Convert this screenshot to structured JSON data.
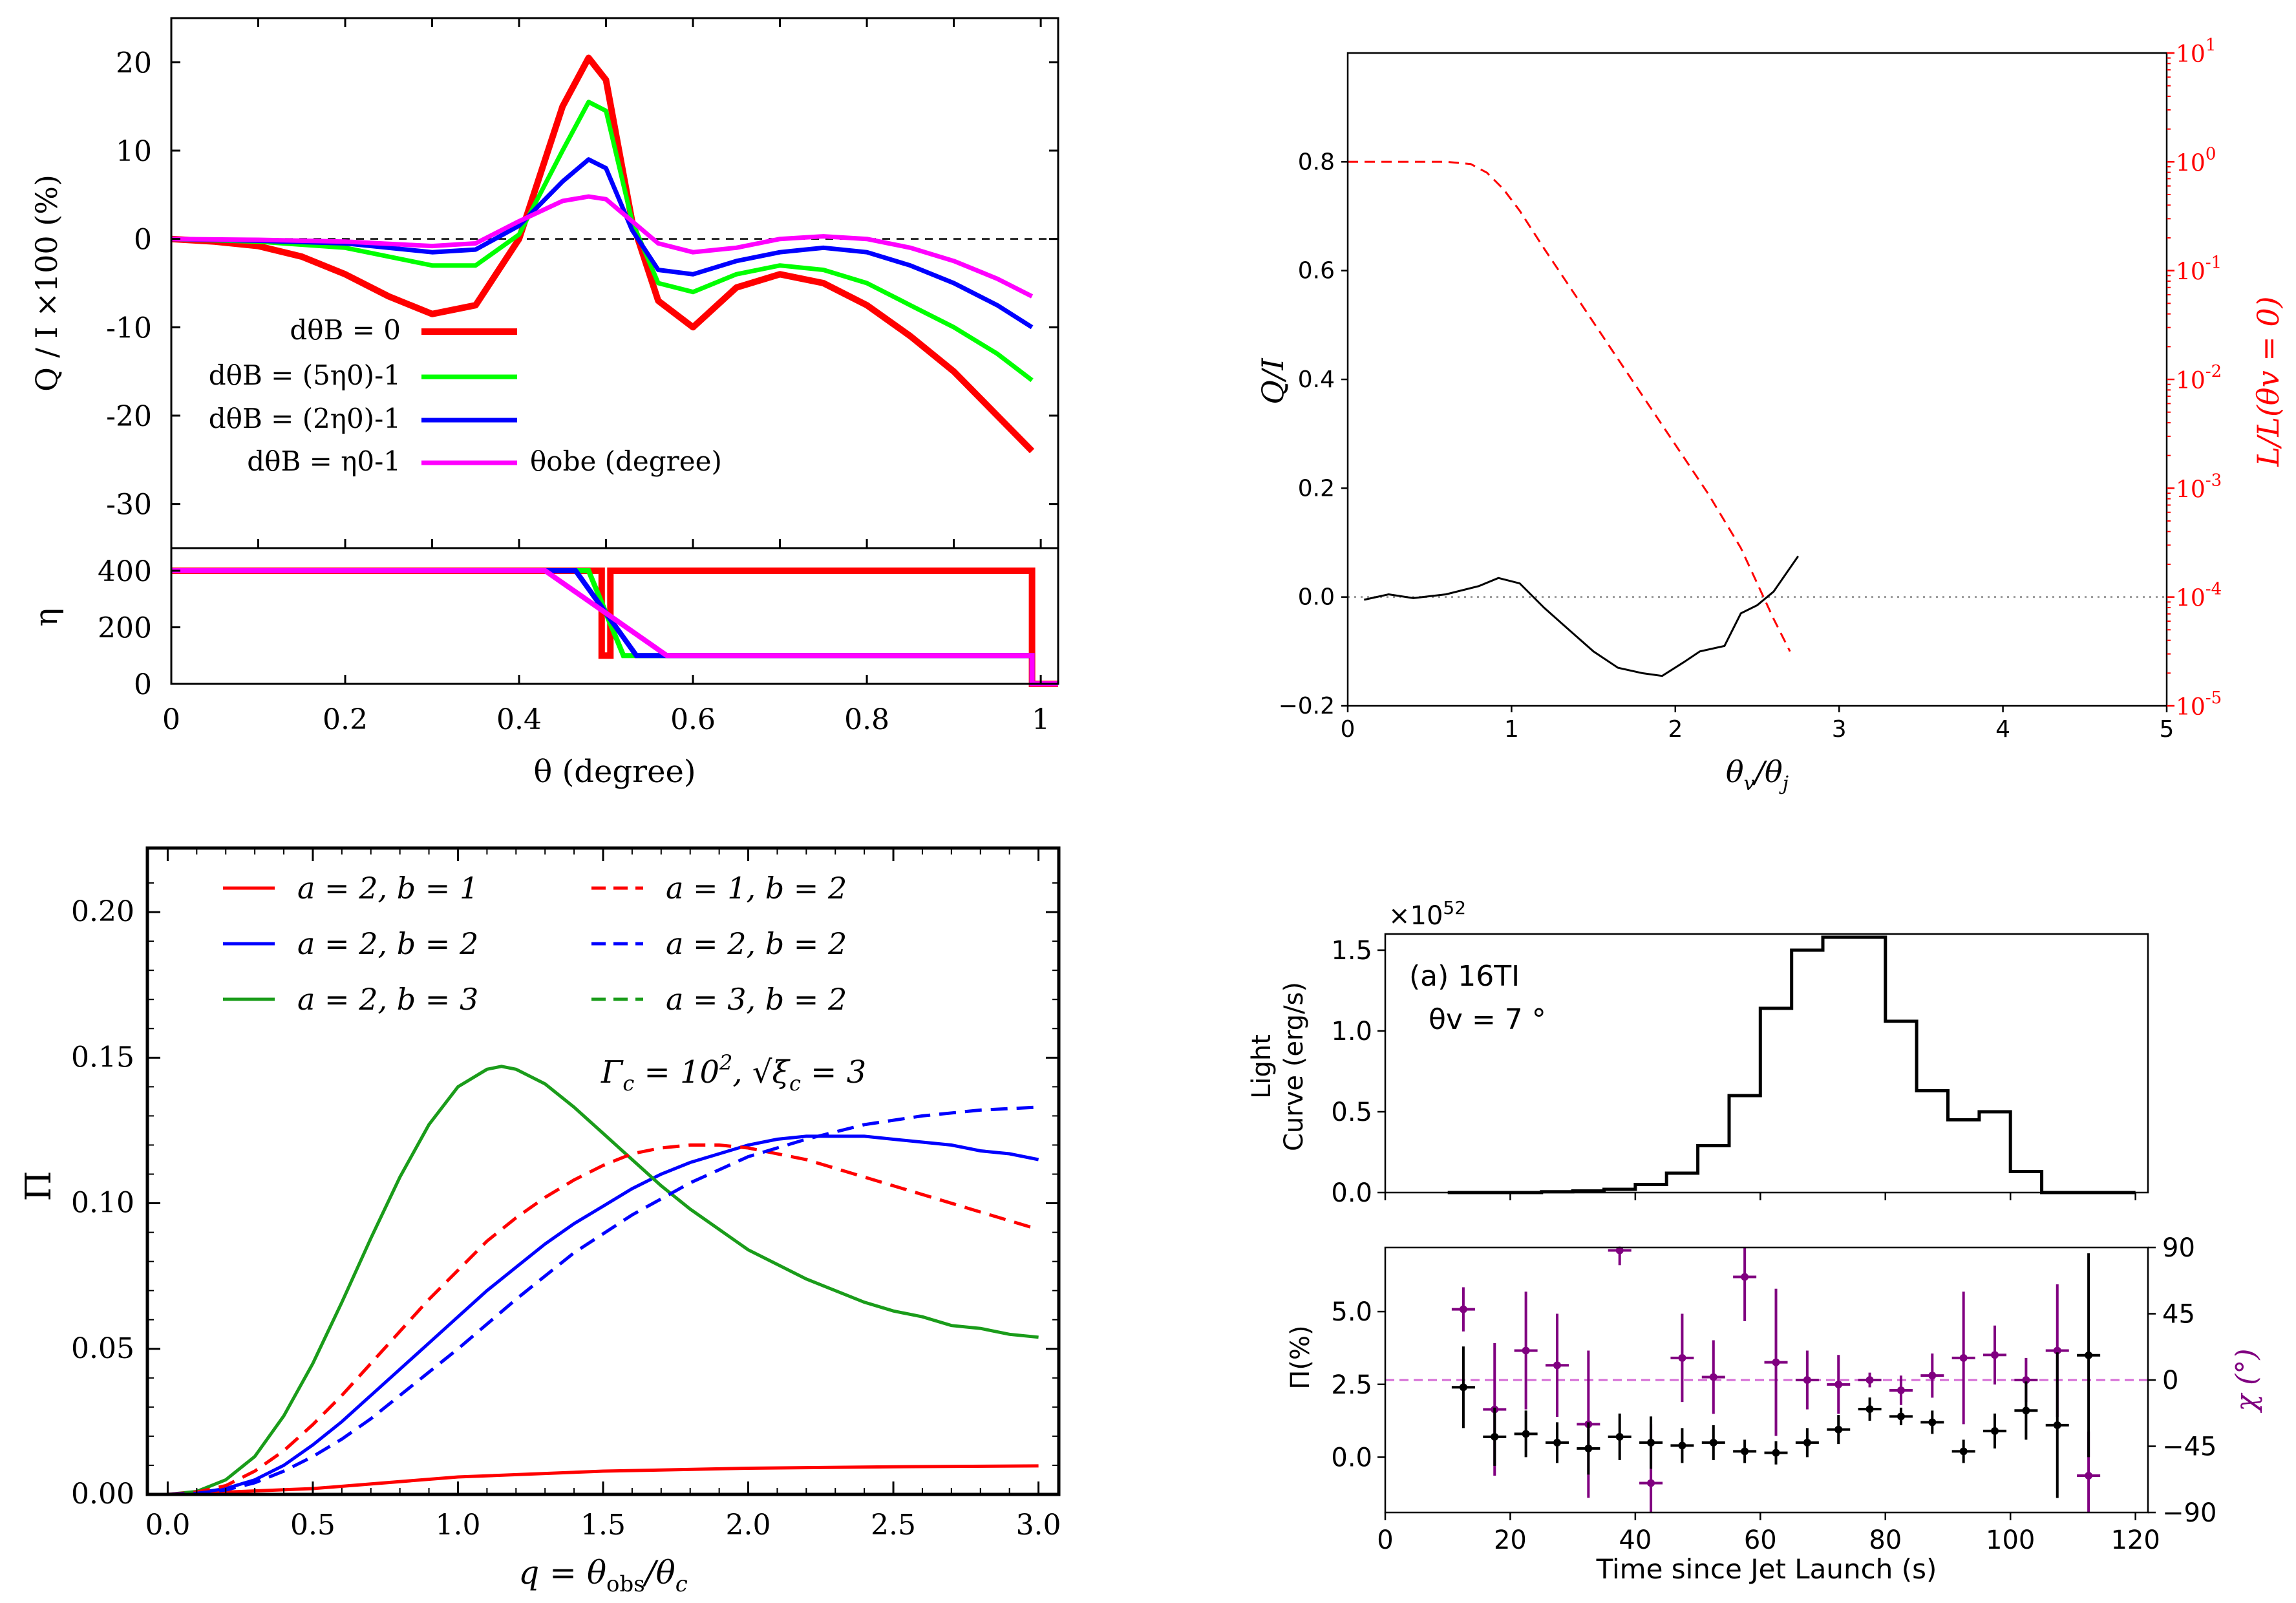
{
  "colors": {
    "red": "#ff0000",
    "green": "#00cc00",
    "green2": "#00ff00",
    "blue": "#0000ff",
    "magenta": "#ff00ff",
    "black": "#000000",
    "purple": "#800080",
    "pink": "#d56bd5",
    "dkgreen": "#1a9c1a"
  },
  "chart_data": [
    {
      "id": "tl_top",
      "type": "line",
      "ylabel": "Q / I  ×100 (%)",
      "xlim": [
        0,
        1.02
      ],
      "ylim": [
        -35,
        25
      ],
      "yticks": [
        "20",
        "10",
        "0",
        "-10",
        "-20",
        "-30"
      ],
      "ytick_values": [
        20,
        10,
        0,
        -10,
        -20,
        -30
      ],
      "annotation": "θobe (degree)",
      "series": [
        {
          "name": "dθB = 0",
          "color": "red",
          "x": [
            0,
            0.05,
            0.1,
            0.15,
            0.2,
            0.25,
            0.3,
            0.35,
            0.4,
            0.45,
            0.48,
            0.5,
            0.53,
            0.56,
            0.6,
            0.65,
            0.7,
            0.75,
            0.8,
            0.85,
            0.9,
            0.95,
            0.99
          ],
          "y": [
            0,
            -0.3,
            -0.8,
            -2,
            -4,
            -6.5,
            -8.5,
            -7.5,
            0,
            15,
            20.5,
            18,
            2,
            -7,
            -10,
            -5.5,
            -4,
            -5,
            -7.5,
            -11,
            -15,
            -20,
            -24
          ]
        },
        {
          "name": "dθB = (5η0)-1",
          "color": "green2",
          "x": [
            0,
            0.1,
            0.2,
            0.3,
            0.35,
            0.4,
            0.45,
            0.48,
            0.5,
            0.53,
            0.56,
            0.6,
            0.65,
            0.7,
            0.75,
            0.8,
            0.85,
            0.9,
            0.95,
            0.99
          ],
          "y": [
            0,
            -0.3,
            -1,
            -3,
            -3,
            0.5,
            10,
            15.5,
            14.5,
            2,
            -5,
            -6,
            -4,
            -3,
            -3.5,
            -5,
            -7.5,
            -10,
            -13,
            -16
          ]
        },
        {
          "name": "dθB = (2η0)-1",
          "color": "blue",
          "x": [
            0,
            0.1,
            0.2,
            0.3,
            0.35,
            0.4,
            0.45,
            0.48,
            0.5,
            0.53,
            0.56,
            0.6,
            0.65,
            0.7,
            0.75,
            0.8,
            0.85,
            0.9,
            0.95,
            0.99
          ],
          "y": [
            0,
            -0.2,
            -0.5,
            -1.5,
            -1.2,
            1.5,
            6.5,
            9,
            8,
            1,
            -3.5,
            -4,
            -2.5,
            -1.5,
            -1,
            -1.5,
            -3,
            -5,
            -7.5,
            -10
          ]
        },
        {
          "name": "dθB = η0-1",
          "color": "magenta",
          "x": [
            0,
            0.1,
            0.2,
            0.3,
            0.35,
            0.4,
            0.45,
            0.48,
            0.5,
            0.53,
            0.56,
            0.6,
            0.65,
            0.7,
            0.75,
            0.8,
            0.85,
            0.9,
            0.95,
            0.99
          ],
          "y": [
            0,
            -0.1,
            -0.3,
            -0.8,
            -0.5,
            2,
            4.3,
            4.8,
            4.5,
            2,
            -0.5,
            -1.5,
            -1,
            0,
            0.3,
            0,
            -1,
            -2.5,
            -4.5,
            -6.5
          ]
        }
      ]
    },
    {
      "id": "tl_bot",
      "type": "line",
      "ylabel": "η",
      "xlabel": "θ (degree)",
      "xlim": [
        0,
        1.02
      ],
      "ylim": [
        0,
        480
      ],
      "xticks": [
        "0",
        "0.2",
        "0.4",
        "0.6",
        "0.8",
        "1"
      ],
      "xtick_values": [
        0,
        0.2,
        0.4,
        0.6,
        0.8,
        1
      ],
      "yticks": [
        "400",
        "200",
        "0"
      ],
      "ytick_values": [
        400,
        200,
        0
      ],
      "series": [
        {
          "color": "red",
          "x": [
            0,
            0.495,
            0.495,
            0.505,
            0.505,
            0.99,
            0.99,
            1.02
          ],
          "y": [
            400,
            400,
            100,
            100,
            400,
            400,
            0,
            0
          ]
        },
        {
          "color": "green2",
          "x": [
            0,
            0.48,
            0.52,
            0.99,
            0.99,
            1.02
          ],
          "y": [
            400,
            400,
            100,
            100,
            0,
            0
          ]
        },
        {
          "color": "blue",
          "x": [
            0,
            0.465,
            0.535,
            0.99,
            0.99,
            1.02
          ],
          "y": [
            400,
            400,
            100,
            100,
            0,
            0
          ]
        },
        {
          "color": "magenta",
          "x": [
            0,
            0.43,
            0.57,
            0.99,
            0.99,
            1.02
          ],
          "y": [
            400,
            400,
            100,
            100,
            0,
            0
          ]
        }
      ]
    },
    {
      "id": "tr",
      "type": "line",
      "ylabel": "Q/I",
      "ylabel_right": "L/L(θv = 0)",
      "xlabel": "θv/θj",
      "xlim": [
        0,
        5
      ],
      "ylim": [
        -0.2,
        1.0
      ],
      "xticks": [
        "0",
        "1",
        "2",
        "3",
        "4",
        "5"
      ],
      "xtick_values": [
        0,
        1,
        2,
        3,
        4,
        5
      ],
      "yticks": [
        "0.8",
        "0.6",
        "0.4",
        "0.2",
        "0.0",
        "−0.2"
      ],
      "ytick_values": [
        0.8,
        0.6,
        0.4,
        0.2,
        0.0,
        -0.2
      ],
      "yticks_right_exponents": [
        "1",
        "0",
        "-1",
        "-2",
        "-3",
        "-4",
        "-5"
      ],
      "series": [
        {
          "color": "black",
          "x": [
            0.1,
            0.25,
            0.4,
            0.6,
            0.8,
            0.92,
            1.05,
            1.2,
            1.35,
            1.5,
            1.65,
            1.8,
            1.92,
            2.05,
            2.15,
            2.3,
            2.4,
            2.5,
            2.6,
            2.75
          ],
          "y": [
            -0.005,
            0.005,
            -0.002,
            0.005,
            0.02,
            0.035,
            0.025,
            -0.02,
            -0.06,
            -0.1,
            -0.13,
            -0.14,
            -0.145,
            -0.12,
            -0.1,
            -0.09,
            -0.03,
            -0.015,
            0.01,
            0.075
          ]
        },
        {
          "color": "red",
          "dashed": true,
          "log": true,
          "x": [
            0,
            0.2,
            0.4,
            0.6,
            0.75,
            0.85,
            0.95,
            1.05,
            1.2,
            1.4,
            1.6,
            1.8,
            2.0,
            2.2,
            2.4,
            2.6,
            2.7
          ],
          "y": [
            0,
            0,
            0,
            0,
            -0.02,
            -0.1,
            -0.25,
            -0.45,
            -0.8,
            -1.25,
            -1.7,
            -2.15,
            -2.6,
            -3.05,
            -3.55,
            -4.2,
            -4.5
          ]
        }
      ]
    },
    {
      "id": "bl",
      "type": "line",
      "ylabel": "Π",
      "xlabel": "q = θobs/θc",
      "annotation": "Γc = 10^2,  √ξc = 3",
      "xlim": [
        -0.07,
        3.07
      ],
      "ylim": [
        0,
        0.222
      ],
      "xticks": [
        "0.0",
        "0.5",
        "1.0",
        "1.5",
        "2.0",
        "2.5",
        "3.0"
      ],
      "xtick_values": [
        0,
        0.5,
        1.0,
        1.5,
        2.0,
        2.5,
        3.0
      ],
      "yticks": [
        "0.20",
        "0.15",
        "0.10",
        "0.05",
        "0.00"
      ],
      "ytick_values": [
        0.2,
        0.15,
        0.1,
        0.05,
        0.0
      ],
      "series": [
        {
          "name": "a = 2,  b = 1",
          "color": "red",
          "dashed": false,
          "x": [
            0,
            0.5,
            1.0,
            1.5,
            2.0,
            2.5,
            3.0
          ],
          "y": [
            0,
            0.002,
            0.006,
            0.008,
            0.009,
            0.0095,
            0.0098
          ]
        },
        {
          "name": "a = 2,  b = 2",
          "color": "blue",
          "dashed": false,
          "x": [
            0,
            0.1,
            0.2,
            0.3,
            0.4,
            0.5,
            0.6,
            0.7,
            0.8,
            0.9,
            1.0,
            1.1,
            1.2,
            1.3,
            1.4,
            1.5,
            1.6,
            1.7,
            1.8,
            1.9,
            2.0,
            2.1,
            2.2,
            2.3,
            2.4,
            2.5,
            2.6,
            2.7,
            2.8,
            2.9,
            3.0
          ],
          "y": [
            0,
            0.0005,
            0.002,
            0.005,
            0.01,
            0.017,
            0.025,
            0.034,
            0.043,
            0.052,
            0.061,
            0.07,
            0.078,
            0.086,
            0.093,
            0.099,
            0.105,
            0.11,
            0.114,
            0.117,
            0.12,
            0.122,
            0.123,
            0.123,
            0.123,
            0.122,
            0.121,
            0.12,
            0.118,
            0.117,
            0.115
          ]
        },
        {
          "name": "a = 2,  b = 3",
          "color": "dkgreen",
          "dashed": false,
          "x": [
            0,
            0.1,
            0.2,
            0.3,
            0.4,
            0.5,
            0.6,
            0.7,
            0.8,
            0.9,
            1.0,
            1.1,
            1.15,
            1.2,
            1.3,
            1.4,
            1.5,
            1.6,
            1.7,
            1.8,
            1.9,
            2.0,
            2.1,
            2.2,
            2.3,
            2.4,
            2.5,
            2.6,
            2.7,
            2.8,
            2.9,
            3.0
          ],
          "y": [
            0,
            0.001,
            0.005,
            0.013,
            0.027,
            0.045,
            0.066,
            0.088,
            0.109,
            0.127,
            0.14,
            0.146,
            0.147,
            0.146,
            0.141,
            0.133,
            0.124,
            0.115,
            0.106,
            0.098,
            0.091,
            0.084,
            0.079,
            0.074,
            0.07,
            0.066,
            0.063,
            0.061,
            0.058,
            0.057,
            0.055,
            0.054
          ]
        },
        {
          "name": "a = 1,  b = 2",
          "color": "red",
          "dashed": true,
          "x": [
            0,
            0.1,
            0.2,
            0.3,
            0.4,
            0.5,
            0.6,
            0.7,
            0.8,
            0.9,
            1.0,
            1.1,
            1.2,
            1.3,
            1.4,
            1.5,
            1.6,
            1.7,
            1.8,
            1.9,
            2.0,
            2.2,
            2.4,
            2.6,
            2.8,
            3.0
          ],
          "y": [
            0,
            0.0008,
            0.003,
            0.008,
            0.015,
            0.024,
            0.034,
            0.045,
            0.056,
            0.067,
            0.077,
            0.087,
            0.095,
            0.102,
            0.108,
            0.113,
            0.117,
            0.119,
            0.12,
            0.12,
            0.119,
            0.115,
            0.109,
            0.103,
            0.097,
            0.091
          ]
        },
        {
          "name": "a = 2,  b = 2",
          "color": "blue",
          "dashed": true,
          "x": [
            0,
            0.1,
            0.2,
            0.3,
            0.4,
            0.5,
            0.6,
            0.7,
            0.8,
            0.9,
            1.0,
            1.2,
            1.4,
            1.6,
            1.8,
            2.0,
            2.2,
            2.4,
            2.6,
            2.8,
            3.0
          ],
          "y": [
            0,
            0.0004,
            0.0015,
            0.004,
            0.008,
            0.013,
            0.019,
            0.026,
            0.034,
            0.042,
            0.05,
            0.067,
            0.083,
            0.096,
            0.107,
            0.116,
            0.122,
            0.127,
            0.13,
            0.132,
            0.133
          ]
        }
      ]
    },
    {
      "id": "br_top",
      "type": "line",
      "ylabel": "Light\nCurve (erg/s)",
      "exponent": "×10",
      "exponent_power": "52",
      "annotation_1": "(a) 16TI",
      "annotation_2": "θv = 7 °",
      "xlim": [
        0,
        122
      ],
      "ylim": [
        0,
        1.6
      ],
      "yticks": [
        "1.5",
        "1.0",
        "0.5",
        "0.0"
      ],
      "ytick_values": [
        1.5,
        1.0,
        0.5,
        0.0
      ],
      "step_edges": [
        10,
        15,
        20,
        25,
        30,
        35,
        40,
        45,
        50,
        55,
        60,
        65,
        70,
        75,
        80,
        85,
        90,
        95,
        100,
        105,
        110,
        115
      ],
      "values": [
        0,
        0,
        0,
        0.005,
        0.01,
        0.02,
        0.05,
        0.12,
        0.29,
        0.6,
        1.14,
        1.5,
        1.58,
        1.58,
        1.06,
        0.63,
        0.45,
        0.5,
        0.13,
        0,
        0,
        0
      ]
    },
    {
      "id": "br_bot",
      "type": "scatter",
      "ylabel": "Π(%)",
      "ylabel_right": "χ (°)",
      "xlabel": "Time since Jet Launch (s)",
      "xlim": [
        0,
        122
      ],
      "ylim": [
        -1.9,
        7.2
      ],
      "xticks": [
        "0",
        "20",
        "40",
        "60",
        "80",
        "100",
        "120"
      ],
      "xtick_values": [
        0,
        20,
        40,
        60,
        80,
        100,
        120
      ],
      "yticks": [
        "5.0",
        "2.5",
        "0.0"
      ],
      "ytick_values": [
        5.0,
        2.5,
        0.0
      ],
      "yticks_right": [
        "90",
        "45",
        "0",
        "−45",
        "−90"
      ],
      "ytick_right_values": [
        90,
        45,
        0,
        -45,
        -90
      ],
      "chi_ref": 0,
      "pi_x": [
        12.5,
        17.5,
        22.5,
        27.5,
        32.5,
        37.5,
        42.5,
        47.5,
        52.5,
        57.5,
        62.5,
        67.5,
        72.5,
        77.5,
        82.5,
        87.5,
        92.5,
        97.5,
        102.5,
        107.5,
        112.5
      ],
      "pi_y": [
        2.4,
        0.7,
        0.8,
        0.5,
        0.3,
        0.7,
        0.5,
        0.4,
        0.5,
        0.2,
        0.15,
        0.5,
        0.95,
        1.65,
        1.4,
        1.2,
        0.2,
        0.9,
        1.6,
        1.1,
        3.5
      ],
      "pi_err": [
        1.4,
        1.0,
        0.8,
        0.7,
        0.9,
        0.8,
        0.9,
        0.6,
        0.6,
        0.4,
        0.4,
        0.5,
        0.5,
        0.4,
        0.3,
        0.4,
        0.4,
        0.6,
        1.0,
        2.5,
        3.5
      ],
      "chi_x": [
        12.5,
        17.5,
        22.5,
        27.5,
        32.5,
        37.5,
        42.5,
        47.5,
        52.5,
        57.5,
        62.5,
        67.5,
        72.5,
        77.5,
        82.5,
        87.5,
        92.5,
        97.5,
        102.5,
        107.5,
        112.5
      ],
      "chi_y": [
        48,
        -20,
        20,
        10,
        -30,
        88,
        -70,
        15,
        2,
        70,
        12,
        0,
        -3,
        0,
        -7,
        3,
        15,
        17,
        0,
        20,
        -65
      ],
      "chi_err": [
        15,
        45,
        40,
        35,
        50,
        10,
        40,
        30,
        25,
        30,
        50,
        20,
        20,
        5,
        10,
        15,
        45,
        20,
        15,
        45,
        30
      ]
    }
  ]
}
